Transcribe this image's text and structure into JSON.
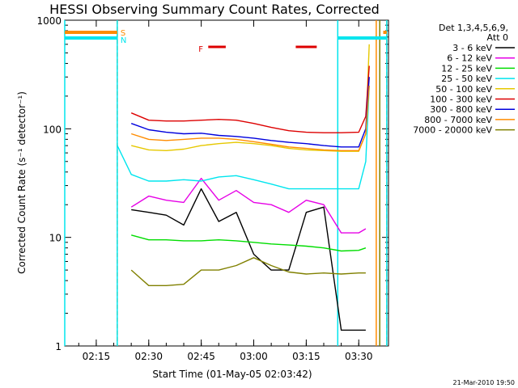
{
  "chart_data": {
    "type": "line",
    "title": "HESSI Observing Summary Count Rates, Corrected",
    "xlabel": "Start Time (01-May-05 02:03:42)",
    "ylabel": "Corrected Count Rate (s⁻¹ detector⁻¹)",
    "yscale": "log",
    "ylim": [
      1,
      1000
    ],
    "xlim": [
      "02:06:00",
      "03:38:30"
    ],
    "x_ticks": [
      "02:15",
      "02:30",
      "02:45",
      "03:00",
      "03:15",
      "03:30"
    ],
    "y_ticks": [
      "1",
      "10",
      "100",
      "1000"
    ],
    "grid": false,
    "legend_placement": "right",
    "legend_title": [
      "Det 1,3,4,5,6,9,",
      "Att 0"
    ],
    "footer": "21-Mar-2010 19:50",
    "x": [
      "02:21",
      "02:25",
      "02:30",
      "02:35",
      "02:40",
      "02:45",
      "02:50",
      "02:55",
      "03:00",
      "03:05",
      "03:10",
      "03:15",
      "03:20",
      "03:25",
      "03:30",
      "03:32",
      "03:33"
    ],
    "series": [
      {
        "name": "3 - 6 keV",
        "color": "#000000",
        "values": [
          null,
          18,
          17,
          16,
          13,
          28,
          14,
          17,
          7,
          5,
          5,
          17,
          19,
          1.4,
          1.4,
          1.4,
          null
        ]
      },
      {
        "name": "6 - 12 keV",
        "color": "#e600e6",
        "values": [
          null,
          19,
          24,
          22,
          21,
          35,
          22,
          27,
          21,
          20,
          17,
          22,
          20,
          11,
          11,
          12,
          null
        ]
      },
      {
        "name": "12 - 25 keV",
        "color": "#00dd00",
        "values": [
          null,
          10.5,
          9.5,
          9.5,
          9.3,
          9.3,
          9.5,
          9.3,
          9,
          8.7,
          8.5,
          8.3,
          8.0,
          7.5,
          7.6,
          8,
          null
        ]
      },
      {
        "name": "25 - 50 keV",
        "color": "#00e5ee",
        "values": [
          70,
          38,
          33,
          33,
          34,
          33,
          36,
          37,
          34,
          31,
          28,
          28,
          28,
          28,
          28,
          50,
          250
        ]
      },
      {
        "name": "50 - 100 keV",
        "color": "#e6c800",
        "values": [
          null,
          70,
          64,
          63,
          65,
          70,
          73,
          75,
          73,
          70,
          66,
          64,
          63,
          62,
          62,
          90,
          600
        ]
      },
      {
        "name": "100 - 300 keV",
        "color": "#dd0000",
        "values": [
          null,
          140,
          120,
          118,
          118,
          120,
          122,
          120,
          112,
          103,
          96,
          93,
          92,
          92,
          93,
          130,
          380
        ]
      },
      {
        "name": "300 - 800 keV",
        "color": "#0000dd",
        "values": [
          null,
          112,
          98,
          93,
          90,
          91,
          87,
          85,
          82,
          78,
          75,
          73,
          70,
          68,
          68,
          100,
          300
        ]
      },
      {
        "name": "800 - 7000 keV",
        "color": "#ff8c00",
        "values": [
          null,
          90,
          80,
          78,
          80,
          82,
          82,
          80,
          76,
          72,
          68,
          66,
          64,
          63,
          63,
          90,
          250
        ]
      },
      {
        "name": "7000 - 20000 keV",
        "color": "#808000",
        "values": [
          null,
          5,
          3.6,
          3.6,
          3.7,
          5,
          5,
          5.5,
          6.5,
          5.5,
          4.8,
          4.6,
          4.7,
          4.6,
          4.7,
          4.7,
          null
        ]
      }
    ],
    "markers": [
      {
        "text": "S",
        "color": "#ff8c00",
        "x": "02:21"
      },
      {
        "text": "N",
        "color": "#00e5ee",
        "x": "02:21"
      },
      {
        "text": "F",
        "color": "#dd0000",
        "x": "02:47"
      }
    ],
    "flare_intervals": [
      [
        "02:47",
        "02:52"
      ],
      [
        "03:12",
        "03:18"
      ]
    ],
    "saa_intervals": [
      [
        "02:06",
        "02:21"
      ],
      [
        "03:37",
        "03:38"
      ]
    ],
    "night_intervals": [
      [
        "02:06",
        "02:21"
      ],
      [
        "03:24",
        "03:38"
      ]
    ],
    "vertical_lines": [
      {
        "x": "02:21",
        "color": "#ff8c00",
        "style": "dashed"
      },
      {
        "x": "02:21",
        "color": "#00e5ee",
        "style": "solid"
      },
      {
        "x": "03:24",
        "color": "#00e5ee",
        "style": "solid"
      },
      {
        "x": "03:35",
        "color": "#ff8c00",
        "style": "solid"
      },
      {
        "x": "03:36",
        "color": "#808000",
        "style": "solid"
      },
      {
        "x": "03:38",
        "color": "#ff8c00",
        "style": "dashed"
      },
      {
        "x": "03:38",
        "color": "#00e5ee",
        "style": "solid"
      },
      {
        "x": "02:06",
        "color": "#00e5ee",
        "style": "solid"
      }
    ]
  }
}
